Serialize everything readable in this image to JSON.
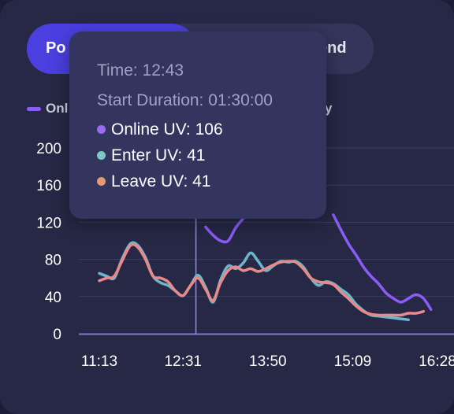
{
  "tabs": [
    {
      "label": "Po",
      "active": true
    },
    {
      "label": "end",
      "active": false
    }
  ],
  "legend": {
    "items": [
      {
        "label": "Onl",
        "color": "#8b5cf6"
      },
      {
        "label": "y",
        "color": "#8b5cf6"
      }
    ]
  },
  "tooltip": {
    "time_text": "Time: 12:43",
    "duration_text": "Start Duration: 01:30:00",
    "rows": [
      {
        "label": "Online UV: 106",
        "color": "#9b6cf0"
      },
      {
        "label": "Enter UV: 41",
        "color": "#7cc9c6"
      },
      {
        "label": "Leave UV: 41",
        "color": "#e79a72"
      }
    ]
  },
  "colors": {
    "background": "#262845",
    "accent": "#4b3fe0",
    "online": "#8b5cf6",
    "enter": "#6cb6cc",
    "leave": "#e98a8a",
    "grid": "#3c3e63",
    "axis_text": "#ffffff"
  },
  "chart_data": {
    "type": "line",
    "title": "",
    "xlabel": "",
    "ylabel": "",
    "x_ticks": [
      "11:13",
      "12:31",
      "13:50",
      "15:09",
      "16:28"
    ],
    "y_ticks": [
      0,
      40,
      80,
      120,
      160,
      200
    ],
    "ylim": [
      0,
      200
    ],
    "x": [
      "11:13",
      "11:20",
      "11:27",
      "11:34",
      "11:42",
      "11:49",
      "11:56",
      "12:03",
      "12:10",
      "12:17",
      "12:24",
      "12:31",
      "12:38",
      "12:45",
      "12:52",
      "12:59",
      "13:06",
      "13:13",
      "13:20",
      "13:27",
      "13:34",
      "13:41",
      "13:48",
      "13:55",
      "14:02",
      "14:09",
      "14:16",
      "14:23",
      "14:30",
      "14:37",
      "14:44",
      "14:51",
      "14:58",
      "15:05",
      "15:12",
      "15:19",
      "15:26",
      "15:33",
      "15:40",
      "15:47",
      "15:54",
      "16:01",
      "16:08",
      "16:15",
      "16:22"
    ],
    "crosshair_x": "12:43",
    "series": [
      {
        "name": "Online UV",
        "color": "#8b5cf6",
        "values": [
          null,
          null,
          null,
          null,
          null,
          null,
          null,
          null,
          null,
          null,
          null,
          null,
          null,
          null,
          115,
          106,
          100,
          100,
          114,
          124,
          null,
          null,
          null,
          null,
          null,
          null,
          null,
          null,
          null,
          null,
          null,
          128,
          112,
          97,
          85,
          72,
          62,
          54,
          44,
          38,
          34,
          38,
          42,
          38,
          26
        ]
      },
      {
        "name": "Enter UV",
        "color": "#6cb6cc",
        "values": [
          65,
          62,
          60,
          80,
          97,
          95,
          82,
          62,
          55,
          52,
          46,
          41,
          52,
          63,
          50,
          34,
          58,
          73,
          70,
          76,
          87,
          78,
          68,
          73,
          78,
          77,
          78,
          72,
          60,
          52,
          56,
          54,
          48,
          42,
          32,
          25,
          20,
          19,
          18,
          17,
          16,
          15,
          null,
          null,
          null
        ]
      },
      {
        "name": "Leave UV",
        "color": "#e98a8a",
        "values": [
          57,
          60,
          62,
          78,
          95,
          93,
          80,
          62,
          60,
          56,
          46,
          41,
          52,
          60,
          48,
          36,
          55,
          68,
          72,
          68,
          70,
          67,
          70,
          74,
          77,
          78,
          77,
          70,
          60,
          56,
          55,
          53,
          45,
          38,
          30,
          24,
          21,
          20,
          20,
          20,
          20,
          22,
          22,
          24,
          null
        ]
      }
    ]
  }
}
